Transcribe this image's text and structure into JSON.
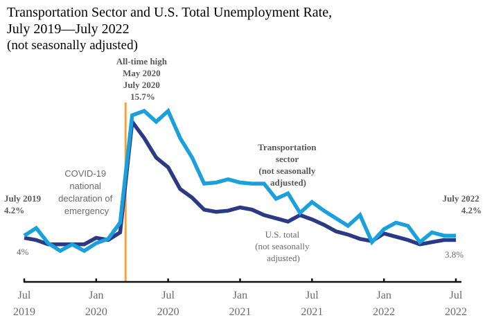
{
  "title": {
    "line1": "Transportation Sector and U.S. Total Unemployment Rate,",
    "line2": "July 2019—July 2022",
    "line3": "(not seasonally adjusted)"
  },
  "colors": {
    "transportation": "#1aa0dd",
    "us_total": "#2b3a85",
    "event_line": "#f7a33a",
    "axis": "#111111",
    "annotation": "#595959"
  },
  "chart_data": {
    "type": "line",
    "title": "Transportation Sector and U.S. Total Unemployment Rate, July 2019—July 2022 (not seasonally adjusted)",
    "xlabel": "",
    "ylabel": "",
    "ylim": [
      0,
      16
    ],
    "grid": false,
    "legend": "none (inline labels)",
    "x": [
      "Jul 2019",
      "Aug 2019",
      "Sep 2019",
      "Oct 2019",
      "Nov 2019",
      "Dec 2019",
      "Jan 2020",
      "Feb 2020",
      "Mar 2020",
      "Apr 2020",
      "May 2020",
      "Jun 2020",
      "Jul 2020",
      "Aug 2020",
      "Sep 2020",
      "Oct 2020",
      "Nov 2020",
      "Dec 2020",
      "Jan 2021",
      "Feb 2021",
      "Mar 2021",
      "Apr 2021",
      "May 2021",
      "Jun 2021",
      "Jul 2021",
      "Aug 2021",
      "Sep 2021",
      "Oct 2021",
      "Nov 2021",
      "Dec 2021",
      "Jan 2022",
      "Feb 2022",
      "Mar 2022",
      "Apr 2022",
      "May 2022",
      "Jun 2022",
      "Jul 2022"
    ],
    "x_ticks": [
      {
        "index": 0,
        "line1": "Jul",
        "line2": "2019"
      },
      {
        "index": 6,
        "line1": "Jan",
        "line2": "2020"
      },
      {
        "index": 12,
        "line1": "Jul",
        "line2": "2020"
      },
      {
        "index": 18,
        "line1": "Jan",
        "line2": "2021"
      },
      {
        "index": 24,
        "line1": "Jul",
        "line2": "2021"
      },
      {
        "index": 30,
        "line1": "Jan",
        "line2": "2022"
      },
      {
        "index": 36,
        "line1": "Jul",
        "line2": "2022"
      }
    ],
    "series": [
      {
        "name": "Transportation sector (not seasonally adjusted)",
        "key": "transportation",
        "values": [
          4.2,
          4.9,
          3.5,
          2.8,
          3.4,
          2.8,
          3.5,
          3.9,
          5.4,
          15.3,
          15.7,
          14.7,
          15.7,
          13.2,
          11.4,
          9.0,
          9.1,
          9.4,
          9.1,
          9.0,
          9.0,
          7.6,
          8.1,
          6.3,
          7.3,
          6.5,
          5.8,
          5.1,
          6.1,
          3.6,
          4.8,
          5.4,
          5.1,
          3.6,
          4.5,
          4.2,
          4.2
        ]
      },
      {
        "name": "U.S. total (not seasonally adjusted)",
        "key": "us_total",
        "values": [
          4.0,
          3.8,
          3.4,
          3.4,
          3.4,
          3.4,
          4.0,
          3.8,
          4.5,
          14.7,
          13.2,
          11.4,
          10.5,
          8.5,
          7.7,
          6.6,
          6.4,
          6.5,
          6.8,
          6.6,
          6.1,
          5.8,
          5.5,
          6.1,
          5.7,
          5.2,
          4.6,
          4.3,
          3.9,
          3.7,
          4.4,
          4.1,
          3.8,
          3.4,
          3.6,
          3.8,
          3.8
        ]
      }
    ],
    "event_marker": {
      "x_index": 8.45,
      "label": [
        "COVID-19",
        "national",
        "declaration of",
        "emergency"
      ]
    },
    "annotations": {
      "peak": [
        "All-time high",
        "May 2020",
        "July 2020",
        "15.7%"
      ],
      "start_transport": [
        "July 2019",
        "4.2%"
      ],
      "start_total": "4%",
      "end_transport": [
        "July 2022",
        "4.2%"
      ],
      "end_total": "3.8%",
      "transport_label": [
        "Transportation",
        "sector",
        "(not seasonally",
        "adjusted)"
      ],
      "total_label": [
        "U.S. total",
        "(not seasonally",
        "adjusted)"
      ]
    }
  }
}
